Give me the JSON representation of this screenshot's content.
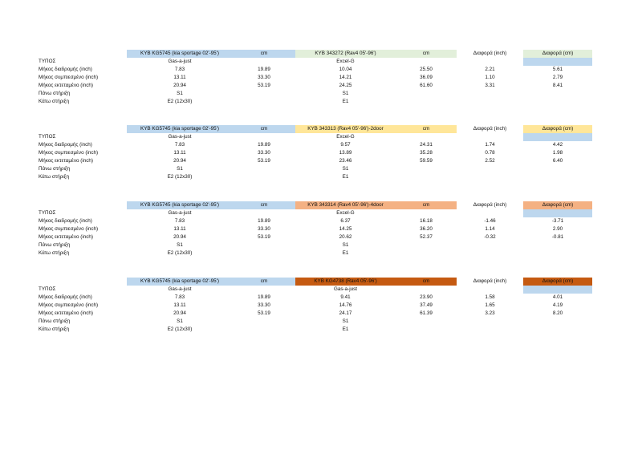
{
  "common": {
    "model_a": "KYB KG5745 (kia sportage 02'-95')",
    "cm_label": "cm",
    "diff_inch_label": "Διαφορά (inch)",
    "diff_cm_label": "Διαφορά (cm)",
    "row_labels": {
      "type": "ΤΥΠΟΣ",
      "stroke": "Μήκος διαδρομής (inch)",
      "compressed": "Μήκος συμπιεσμένο (inch)",
      "extended": "Μήκος εκτεταμένο (inch)",
      "top_mount": "Πάνω στήριξη",
      "bottom_mount": "Κάτω στήριξη"
    },
    "a_values": {
      "type": "Gas-a-just",
      "stroke_in": "7.83",
      "stroke_cm": "19.89",
      "compressed_in": "13.11",
      "compressed_cm": "33.30",
      "extended_in": "20.94",
      "extended_cm": "53.19",
      "top_mount": "S1",
      "bottom_mount": "E2 (12x30)"
    }
  },
  "colors": {
    "model_a_header": "#bdd7ee",
    "diff_strip": "#bdd7ee"
  },
  "blocks": [
    {
      "model_b": "KYB 343272 (Rav4 05'-96')",
      "color": "#e2efda",
      "b_type": "Excel-G",
      "stroke_in": "10.04",
      "stroke_cm": "25.50",
      "stroke_dinch": "2.21",
      "stroke_dcm": "5.61",
      "compressed_in": "14.21",
      "compressed_cm": "36.09",
      "compressed_dinch": "1.10",
      "compressed_dcm": "2.79",
      "extended_in": "24.25",
      "extended_cm": "61.60",
      "extended_dinch": "3.31",
      "extended_dcm": "8.41",
      "top_mount": "S1",
      "bottom_mount": "E1"
    },
    {
      "model_b": "KYB 343313 (Rav4 05'-96')-2door",
      "color": "#ffe699",
      "b_type": "Excel-G",
      "stroke_in": "9.57",
      "stroke_cm": "24.31",
      "stroke_dinch": "1.74",
      "stroke_dcm": "4.42",
      "compressed_in": "13.89",
      "compressed_cm": "35.28",
      "compressed_dinch": "0.78",
      "compressed_dcm": "1.98",
      "extended_in": "23.46",
      "extended_cm": "59.59",
      "extended_dinch": "2.52",
      "extended_dcm": "6.40",
      "top_mount": "S1",
      "bottom_mount": "E1"
    },
    {
      "model_b": "KYB 343314 (Rav4 05'-96')-4door",
      "color": "#f4b183",
      "b_type": "Excel-G",
      "stroke_in": "6.37",
      "stroke_cm": "16.18",
      "stroke_dinch": "-1.46",
      "stroke_dcm": "-3.71",
      "compressed_in": "14.25",
      "compressed_cm": "36.20",
      "compressed_dinch": "1.14",
      "compressed_dcm": "2.90",
      "extended_in": "20.62",
      "extended_cm": "52.37",
      "extended_dinch": "-0.32",
      "extended_dcm": "-0.81",
      "top_mount": "S1",
      "bottom_mount": "E1"
    },
    {
      "model_b": "KYB KG4738 (Rav4 05'-96')",
      "color": "#c55a11",
      "b_type": "Gas-a-just",
      "stroke_in": "9.41",
      "stroke_cm": "23.90",
      "stroke_dinch": "1.58",
      "stroke_dcm": "4.01",
      "compressed_in": "14.76",
      "compressed_cm": "37.49",
      "compressed_dinch": "1.65",
      "compressed_dcm": "4.19",
      "extended_in": "24.17",
      "extended_cm": "61.39",
      "extended_dinch": "3.23",
      "extended_dcm": "8.20",
      "top_mount": "S1",
      "bottom_mount": "E1"
    }
  ]
}
